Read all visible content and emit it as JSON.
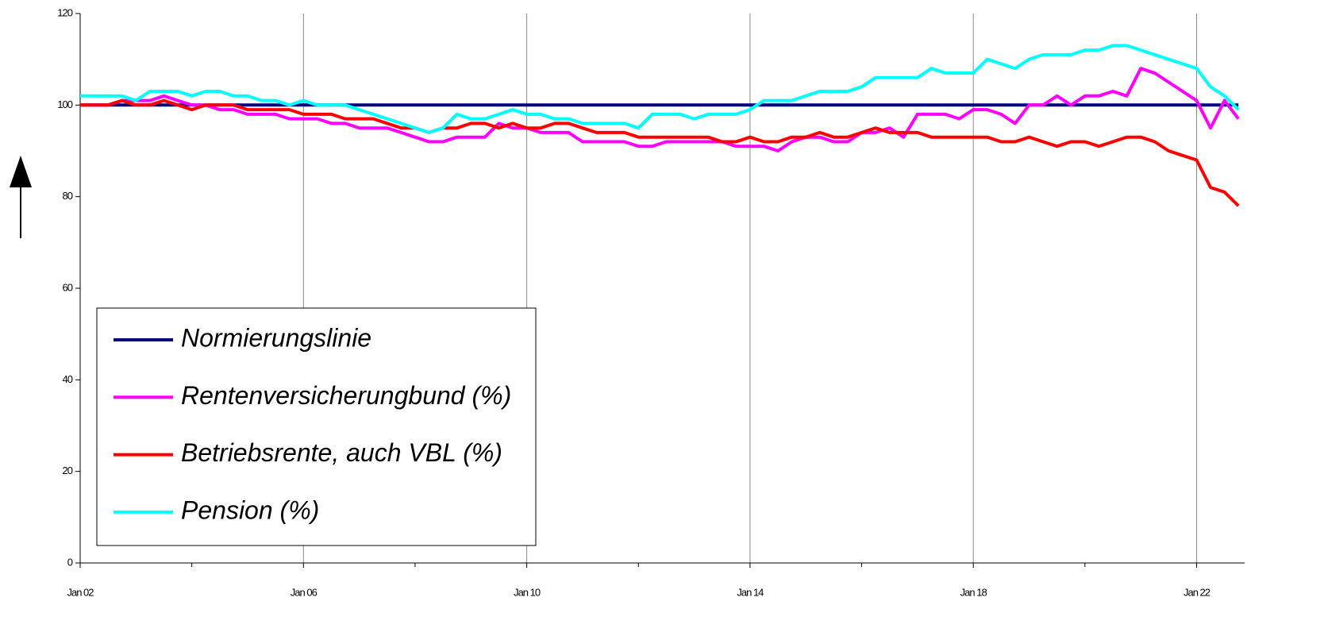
{
  "chart_data": {
    "type": "line",
    "categories": [
      "Jan 02",
      null,
      null,
      null,
      null,
      null,
      null,
      null,
      null,
      null,
      null,
      null,
      null,
      null,
      null,
      null,
      "Jan 06",
      null,
      null,
      null,
      null,
      null,
      null,
      null,
      null,
      null,
      null,
      null,
      null,
      null,
      null,
      null,
      "Jan 10",
      null,
      null,
      null,
      null,
      null,
      null,
      null,
      null,
      null,
      null,
      null,
      null,
      null,
      null,
      null,
      "Jan 14",
      null,
      null,
      null,
      null,
      null,
      null,
      null,
      null,
      null,
      null,
      null,
      null,
      null,
      null,
      null,
      "Jan 18",
      null,
      null,
      null,
      null,
      null,
      null,
      null,
      null,
      null,
      null,
      null,
      null,
      null,
      null,
      null,
      "Jan 22",
      null,
      null,
      null
    ],
    "series": [
      {
        "name": "Normierungslinie",
        "color": "#000080",
        "values": [
          100,
          100,
          100,
          100,
          100,
          100,
          100,
          100,
          100,
          100,
          100,
          100,
          100,
          100,
          100,
          100,
          100,
          100,
          100,
          100,
          100,
          100,
          100,
          100,
          100,
          100,
          100,
          100,
          100,
          100,
          100,
          100,
          100,
          100,
          100,
          100,
          100,
          100,
          100,
          100,
          100,
          100,
          100,
          100,
          100,
          100,
          100,
          100,
          100,
          100,
          100,
          100,
          100,
          100,
          100,
          100,
          100,
          100,
          100,
          100,
          100,
          100,
          100,
          100,
          100,
          100,
          100,
          100,
          100,
          100,
          100,
          100,
          100,
          100,
          100,
          100,
          100,
          100,
          100,
          100,
          100,
          100,
          100,
          100
        ]
      },
      {
        "name": "Rentenversicherungbund (%)",
        "color": "#ff00ff",
        "values": [
          100,
          100,
          100,
          101,
          101,
          101,
          102,
          101,
          100,
          100,
          99,
          99,
          98,
          98,
          98,
          97,
          97,
          97,
          96,
          96,
          95,
          95,
          95,
          94,
          93,
          92,
          92,
          93,
          93,
          93,
          96,
          95,
          95,
          94,
          94,
          94,
          92,
          92,
          92,
          92,
          91,
          91,
          92,
          92,
          92,
          92,
          92,
          91,
          91,
          91,
          90,
          92,
          93,
          93,
          92,
          92,
          94,
          94,
          95,
          93,
          98,
          98,
          98,
          97,
          99,
          99,
          98,
          96,
          100,
          100,
          102,
          100,
          102,
          102,
          103,
          102,
          108,
          107,
          105,
          103,
          101,
          95,
          101,
          97
        ]
      },
      {
        "name": "Betriebsrente, auch VBL (%)",
        "color": "#ff0000",
        "values": [
          100,
          100,
          100,
          101,
          100,
          100,
          101,
          100,
          99,
          100,
          100,
          100,
          99,
          99,
          99,
          99,
          98,
          98,
          98,
          97,
          97,
          97,
          96,
          95,
          95,
          94,
          95,
          95,
          96,
          96,
          95,
          96,
          95,
          95,
          96,
          96,
          95,
          94,
          94,
          94,
          93,
          93,
          93,
          93,
          93,
          93,
          92,
          92,
          93,
          92,
          92,
          93,
          93,
          94,
          93,
          93,
          94,
          95,
          94,
          94,
          94,
          93,
          93,
          93,
          93,
          93,
          92,
          92,
          93,
          92,
          91,
          92,
          92,
          91,
          92,
          93,
          93,
          92,
          90,
          89,
          88,
          82,
          81,
          78
        ]
      },
      {
        "name": "Pension (%)",
        "color": "#00ffff",
        "values": [
          102,
          102,
          102,
          102,
          101,
          103,
          103,
          103,
          102,
          103,
          103,
          102,
          102,
          101,
          101,
          100,
          101,
          100,
          100,
          100,
          99,
          98,
          97,
          96,
          95,
          94,
          95,
          98,
          97,
          97,
          98,
          99,
          98,
          98,
          97,
          97,
          96,
          96,
          96,
          96,
          95,
          98,
          98,
          98,
          97,
          98,
          98,
          98,
          99,
          101,
          101,
          101,
          102,
          103,
          103,
          103,
          104,
          106,
          106,
          106,
          106,
          108,
          107,
          107,
          107,
          110,
          109,
          108,
          110,
          111,
          111,
          111,
          112,
          112,
          113,
          113,
          112,
          111,
          110,
          109,
          108,
          104,
          102,
          99
        ]
      }
    ],
    "ylim": [
      0,
      120
    ],
    "yticks": [
      0,
      20,
      40,
      60,
      80,
      100,
      120
    ],
    "grid": true
  }
}
